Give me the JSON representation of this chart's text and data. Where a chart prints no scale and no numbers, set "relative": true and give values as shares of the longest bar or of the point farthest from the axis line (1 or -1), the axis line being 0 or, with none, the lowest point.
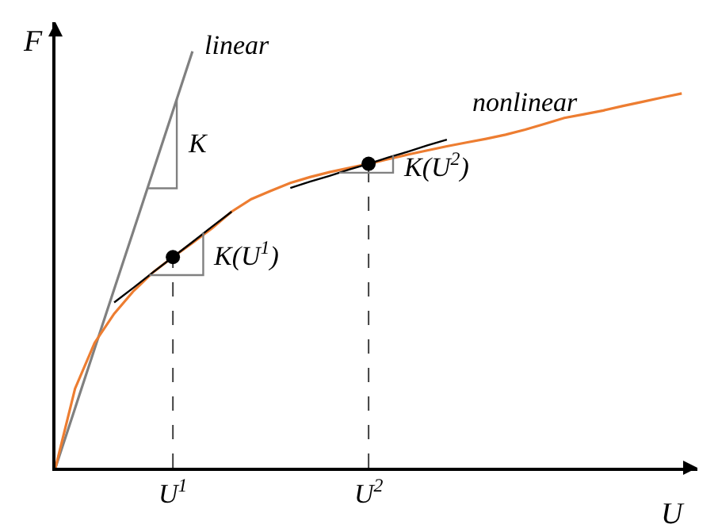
{
  "chart_data": {
    "type": "line",
    "relative": true,
    "xlabel": "U",
    "ylabel": "F",
    "categories": [
      null,
      null,
      null,
      null,
      null,
      null,
      "U$^{1}$",
      null,
      null,
      null,
      null,
      null,
      null,
      null,
      null,
      null,
      "U$^{2}$",
      null,
      null,
      null,
      null,
      null,
      null,
      null,
      null,
      null,
      null,
      null,
      null,
      null,
      null,
      null,
      null
    ],
    "series": [
      {
        "name": "linear",
        "color": "#808080",
        "values": [
          0,
          0.143,
          0.286,
          0.429,
          0.571,
          0.714,
          0.857,
          1,
          null,
          null,
          null,
          null,
          null,
          null,
          null,
          null,
          null,
          null,
          null,
          null,
          null,
          null,
          null,
          null,
          null,
          null,
          null,
          null,
          null,
          null,
          null,
          null,
          null
        ]
      },
      {
        "name": "nonlinear",
        "color": "#ed7d31",
        "values": [
          0,
          0.19,
          0.3,
          0.37,
          0.425,
          0.47,
          0.506,
          0.54,
          0.575,
          0.615,
          0.645,
          0.665,
          0.684,
          0.698,
          0.71,
          0.72,
          0.73,
          0.741,
          0.752,
          0.762,
          0.772,
          0.781,
          0.79,
          0.8,
          0.812,
          0.826,
          0.84,
          0.849,
          0.858,
          0.869,
          0.879,
          0.889,
          0.899
        ]
      },
      {
        "color": "#000000",
        "values": [
          null,
          null,
          null,
          0.397,
          0.433,
          0.47,
          0.506,
          0.542,
          0.579,
          0.615,
          null,
          null,
          null,
          null,
          null,
          null,
          null,
          null,
          null,
          null,
          null,
          null,
          null,
          null,
          null,
          null,
          null,
          null,
          null,
          null,
          null,
          null,
          null
        ]
      },
      {
        "color": "#000000",
        "values": [
          null,
          null,
          null,
          null,
          null,
          null,
          null,
          null,
          null,
          null,
          null,
          null,
          0.672,
          0.687,
          0.701,
          0.716,
          0.73,
          0.745,
          0.759,
          0.774,
          0.788,
          null,
          null,
          null,
          null,
          null,
          null,
          null,
          null,
          null,
          null,
          null,
          null
        ]
      },
      {
        "type": "scatter",
        "color": "#000000",
        "marker": "circle",
        "line_style": "dashed",
        "values": [
          null,
          null,
          null,
          null,
          null,
          null,
          0.506,
          null,
          null,
          null,
          null,
          null,
          null,
          null,
          null,
          null,
          0.73,
          null,
          null,
          null,
          null,
          null,
          null,
          null,
          null,
          null,
          null,
          null,
          null,
          null,
          null,
          null,
          null
        ]
      }
    ],
    "annotations": [
      "K",
      "K(U$^{1}$)",
      "K(U$^{2}$)"
    ]
  }
}
